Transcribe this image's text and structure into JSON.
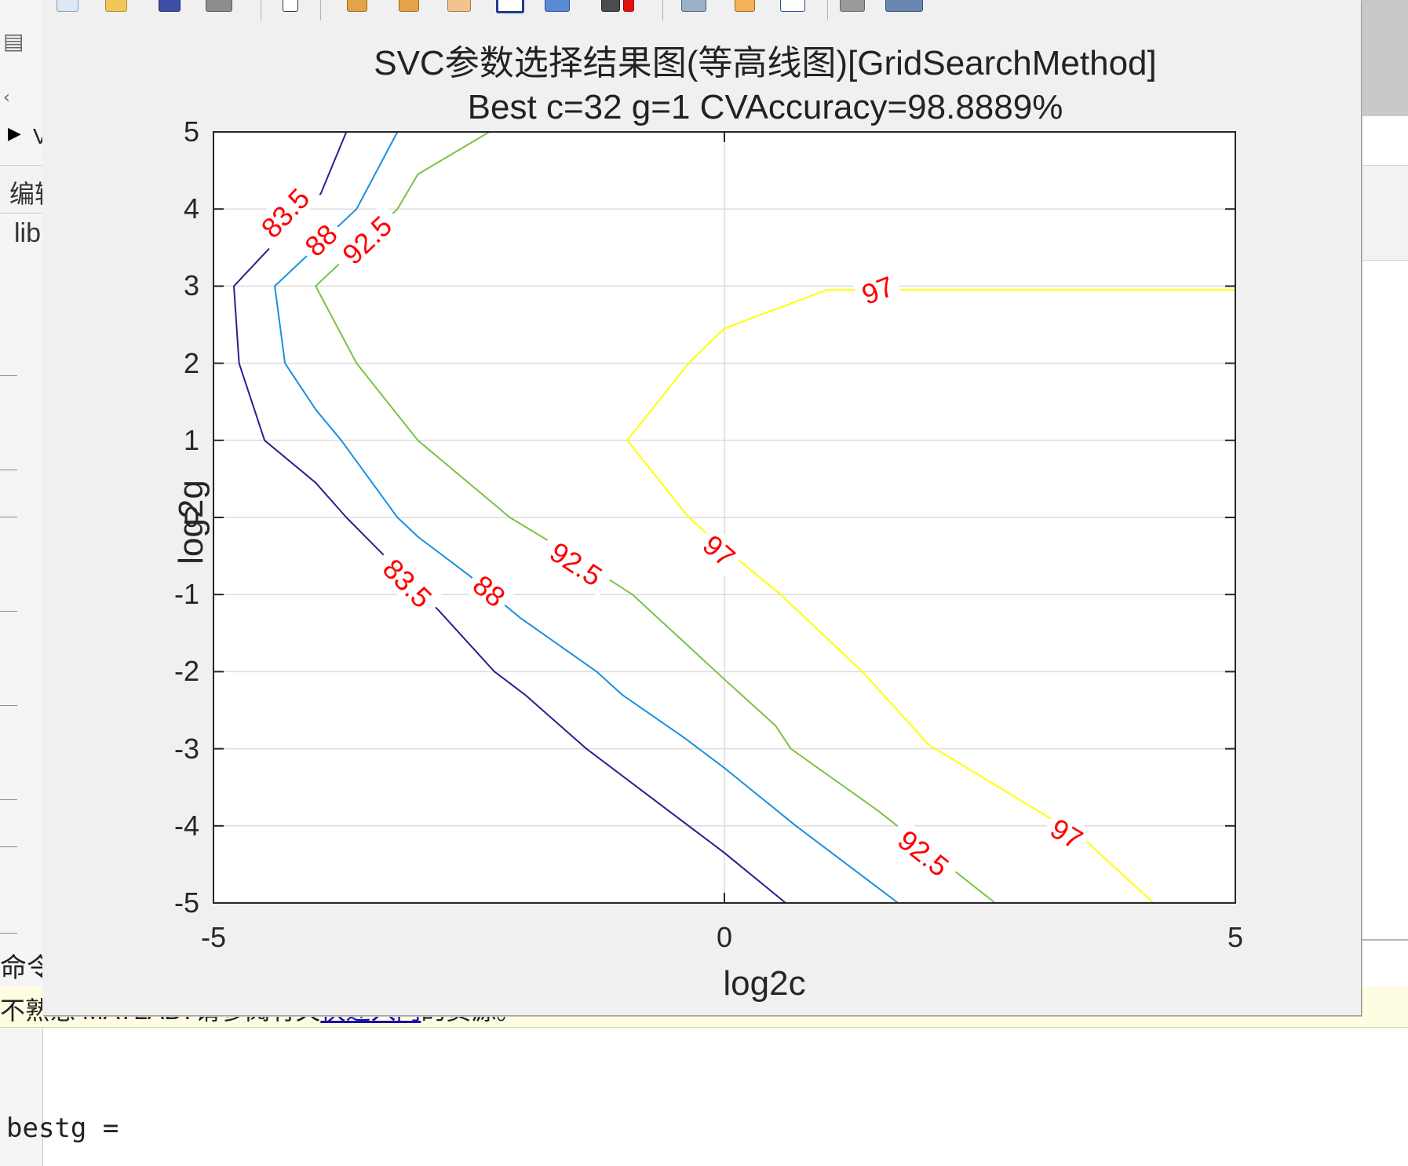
{
  "desktop": {
    "left_panel": {
      "row1_text": "编辑",
      "row2_text": "lib",
      "arrow_text": "V"
    },
    "command_window": {
      "label": "命令行",
      "banner": {
        "prefix": "不熟悉 MATLAB?请参阅有关",
        "link": "快速入门",
        "suffix": "的资源。"
      },
      "output_line": "bestg ="
    }
  },
  "figure": {
    "title_line1": "SVC参数选择结果图(等高线图)[GridSearchMethod]",
    "title_line2": "Best c=32 g=1 CVAccuracy=98.8889%",
    "xlabel": "log2c",
    "ylabel": "log2g",
    "toolbar_icons": [
      "new-figure-icon",
      "open-file-icon",
      "save-icon",
      "print-icon",
      "pointer-icon",
      "zoom-in-icon",
      "zoom-out-icon",
      "pan-icon",
      "rotate-icon",
      "data-cursor-icon",
      "brush-icon",
      "link-icon",
      "colorbar-icon",
      "legend-icon",
      "hide-plot-tools-icon",
      "show-plot-tools-icon"
    ],
    "label_color": "#ff0000"
  },
  "chart_data": {
    "type": "contour",
    "title": "SVC参数选择结果图(等高线图)[GridSearchMethod]",
    "subtitle": "Best c=32 g=1 CVAccuracy=98.8889%",
    "xlabel": "log2c",
    "ylabel": "log2g",
    "xlim": [
      -5,
      5
    ],
    "ylim": [
      -5,
      5
    ],
    "xticks": [
      -5,
      0,
      5
    ],
    "yticks": [
      5,
      4,
      3,
      2,
      1,
      0,
      -1,
      -2,
      -3,
      -4,
      -5
    ],
    "grid": true,
    "levels": [
      {
        "level": "83.5",
        "color": "#2a1f8f",
        "points": [
          [
            -3.7,
            5
          ],
          [
            -3.95,
            4.2
          ],
          [
            -4.8,
            3
          ],
          [
            -4.75,
            2
          ],
          [
            -4.5,
            1
          ],
          [
            -4.0,
            0.45
          ],
          [
            -3.7,
            0
          ],
          [
            -3.4,
            -0.4
          ],
          [
            -2.8,
            -1.2
          ],
          [
            -2.25,
            -2
          ],
          [
            -1.95,
            -2.3
          ],
          [
            -1.35,
            -3
          ],
          [
            -0.6,
            -3.75
          ],
          [
            0,
            -4.35
          ],
          [
            0.6,
            -5
          ]
        ],
        "label_positions": [
          [
            -4.3,
            3.95
          ],
          [
            -3.1,
            -0.85
          ]
        ]
      },
      {
        "level": "88",
        "color": "#1a8fe0",
        "points": [
          [
            -3.2,
            5
          ],
          [
            -3.6,
            4.0
          ],
          [
            -4.4,
            3
          ],
          [
            -4.3,
            2
          ],
          [
            -4.0,
            1.4
          ],
          [
            -3.75,
            1
          ],
          [
            -3.2,
            0
          ],
          [
            -3.0,
            -0.25
          ],
          [
            -2.5,
            -0.75
          ],
          [
            -2.0,
            -1.3
          ],
          [
            -1.25,
            -2
          ],
          [
            -1.0,
            -2.3
          ],
          [
            -0.4,
            -2.85
          ],
          [
            0,
            -3.25
          ],
          [
            0.7,
            -4.0
          ],
          [
            1.7,
            -5
          ]
        ],
        "label_positions": [
          [
            -3.95,
            3.6
          ],
          [
            -2.3,
            -0.95
          ]
        ]
      },
      {
        "level": "92.5",
        "color": "#7dc243",
        "points": [
          [
            -2.3,
            5
          ],
          [
            -3.0,
            4.45
          ],
          [
            -3.2,
            4.0
          ],
          [
            -4.0,
            3
          ],
          [
            -3.6,
            2
          ],
          [
            -3.0,
            1
          ],
          [
            -2.1,
            0
          ],
          [
            -1.6,
            -0.4
          ],
          [
            -0.9,
            -1.0
          ],
          [
            0,
            -2.1
          ],
          [
            0.5,
            -2.7
          ],
          [
            0.65,
            -3.0
          ],
          [
            1.5,
            -3.8
          ],
          [
            2.65,
            -5
          ]
        ],
        "label_positions": [
          [
            -3.5,
            3.6
          ],
          [
            -1.45,
            -0.6
          ],
          [
            1.95,
            -4.35
          ]
        ]
      },
      {
        "level": "97",
        "color": "#ffff00",
        "points": [
          [
            5,
            2.95
          ],
          [
            1.0,
            2.95
          ],
          [
            0,
            2.45
          ],
          [
            -0.35,
            2.0
          ],
          [
            -0.95,
            1.0
          ],
          [
            -0.35,
            0
          ],
          [
            0,
            -0.4
          ],
          [
            0.55,
            -1.0
          ],
          [
            1.35,
            -2.0
          ],
          [
            2.0,
            -2.95
          ],
          [
            3.0,
            -3.75
          ],
          [
            3.5,
            -4.15
          ],
          [
            4.2,
            -5
          ]
        ],
        "label_positions": [
          [
            1.5,
            2.95
          ],
          [
            -0.05,
            -0.43
          ],
          [
            3.35,
            -4.1
          ]
        ]
      }
    ]
  }
}
